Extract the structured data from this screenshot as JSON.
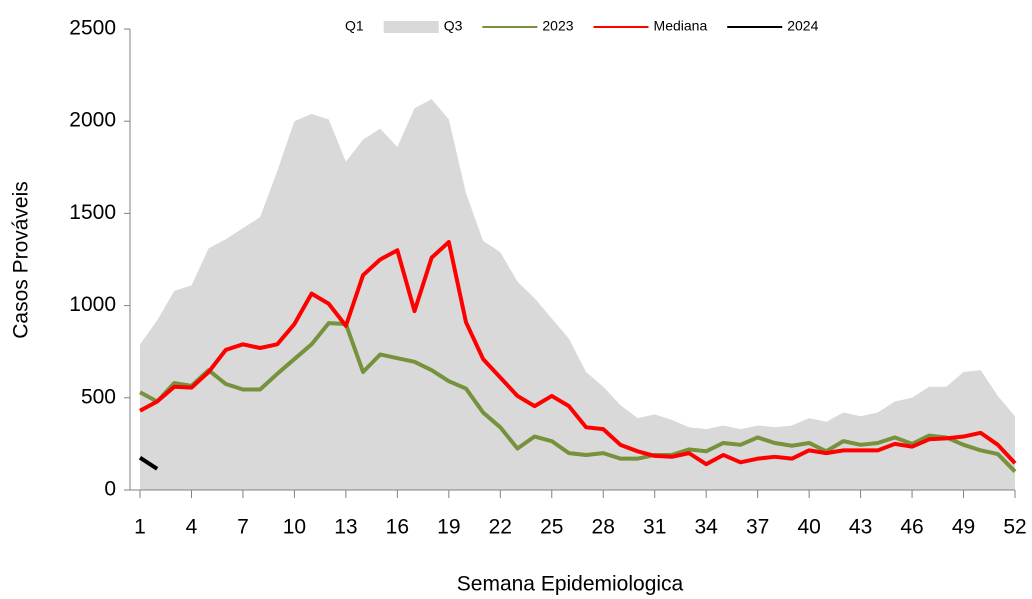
{
  "chart_data": {
    "type": "line",
    "xlabel": "Semana Epidemiologica",
    "ylabel": "Casos Prováveis",
    "x": [
      1,
      2,
      3,
      4,
      5,
      6,
      7,
      8,
      9,
      10,
      11,
      12,
      13,
      14,
      15,
      16,
      17,
      18,
      19,
      20,
      21,
      22,
      23,
      24,
      25,
      26,
      27,
      28,
      29,
      30,
      31,
      32,
      33,
      34,
      35,
      36,
      37,
      38,
      39,
      40,
      41,
      42,
      43,
      44,
      45,
      46,
      47,
      48,
      49,
      50,
      51,
      52
    ],
    "series": [
      {
        "name": "Q1",
        "type": "area",
        "color": "#ffffff",
        "values": [
          325,
          434,
          460,
          445,
          500,
          525,
          540,
          540,
          600,
          695,
          730,
          640,
          515,
          515,
          545,
          540,
          535,
          490,
          465,
          445,
          355,
          315,
          300,
          330,
          300,
          240,
          210,
          200,
          180,
          170,
          165,
          150,
          140,
          135,
          130,
          120,
          115,
          120,
          130,
          140,
          145,
          165,
          175,
          185,
          200,
          210,
          240,
          250,
          240,
          220,
          170,
          100
        ]
      },
      {
        "name": "Q3",
        "type": "area",
        "color": "#d9d9d9",
        "values": [
          790,
          920,
          1080,
          1110,
          1310,
          1360,
          1420,
          1480,
          1730,
          2000,
          2040,
          2010,
          1780,
          1900,
          1960,
          1860,
          2070,
          2120,
          2010,
          1610,
          1350,
          1290,
          1130,
          1040,
          930,
          820,
          640,
          560,
          460,
          390,
          410,
          380,
          340,
          330,
          350,
          330,
          350,
          340,
          350,
          390,
          370,
          420,
          400,
          420,
          480,
          500,
          560,
          560,
          640,
          650,
          510,
          400
        ]
      },
      {
        "name": "2023",
        "type": "line",
        "color": "#76923c",
        "values": [
          530,
          480,
          580,
          565,
          650,
          575,
          545,
          545,
          630,
          710,
          790,
          905,
          900,
          640,
          735,
          715,
          695,
          650,
          590,
          550,
          420,
          340,
          225,
          290,
          265,
          200,
          190,
          200,
          170,
          170,
          190,
          190,
          220,
          210,
          255,
          245,
          285,
          255,
          240,
          255,
          210,
          265,
          245,
          255,
          285,
          250,
          295,
          285,
          245,
          215,
          195,
          100
        ]
      },
      {
        "name": "Mediana",
        "type": "line",
        "color": "#ff0000",
        "values": [
          430,
          480,
          560,
          555,
          640,
          760,
          790,
          770,
          790,
          900,
          1065,
          1010,
          890,
          1165,
          1250,
          1300,
          970,
          1260,
          1345,
          910,
          710,
          610,
          510,
          455,
          510,
          455,
          340,
          330,
          245,
          210,
          185,
          180,
          200,
          140,
          190,
          150,
          170,
          180,
          170,
          215,
          200,
          215,
          215,
          215,
          250,
          235,
          275,
          280,
          290,
          310,
          245,
          145
        ]
      },
      {
        "name": "2024",
        "type": "line",
        "color": "#000000",
        "values": [
          175,
          115,
          null,
          null,
          null,
          null,
          null,
          null,
          null,
          null,
          null,
          null,
          null,
          null,
          null,
          null,
          null,
          null,
          null,
          null,
          null,
          null,
          null,
          null,
          null,
          null,
          null,
          null,
          null,
          null,
          null,
          null,
          null,
          null,
          null,
          null,
          null,
          null,
          null,
          null,
          null,
          null,
          null,
          null,
          null,
          null,
          null,
          null,
          null,
          null,
          null,
          null
        ]
      }
    ],
    "xlim": [
      1,
      52
    ],
    "xticks": [
      1,
      4,
      7,
      10,
      13,
      16,
      19,
      22,
      25,
      28,
      31,
      34,
      37,
      40,
      43,
      46,
      49,
      52
    ],
    "ylim": [
      0,
      2500
    ],
    "yticks": [
      0,
      500,
      1000,
      1500,
      2000,
      2500
    ],
    "legend": "top"
  }
}
